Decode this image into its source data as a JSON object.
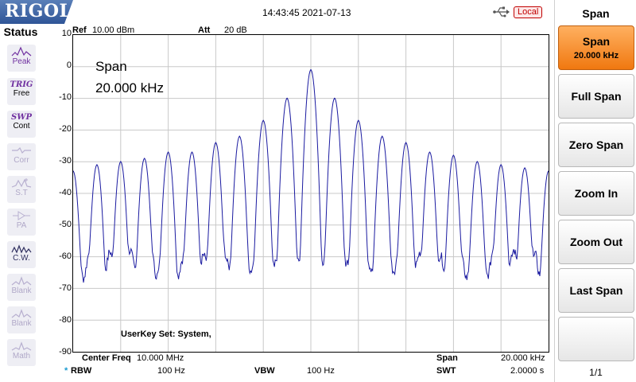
{
  "header": {
    "brand": "RIGOL",
    "datetime": "14:43:45 2021-07-13",
    "usb_icon": "usb-icon",
    "remote_mode": "Local"
  },
  "status": {
    "title": "Status",
    "items": [
      {
        "top": "",
        "label": "Peak",
        "icon": "peak-icon",
        "state": "active"
      },
      {
        "top": "TRIG",
        "label": "Free",
        "icon": "",
        "state": "active"
      },
      {
        "top": "SWP",
        "label": "Cont",
        "icon": "",
        "state": "active"
      },
      {
        "top": "",
        "label": "Corr",
        "icon": "corr-icon",
        "state": "dim"
      },
      {
        "top": "",
        "label": "S.T",
        "icon": "st-icon",
        "state": "dim"
      },
      {
        "top": "",
        "label": "PA",
        "icon": "pa-icon",
        "state": "dim"
      },
      {
        "top": "",
        "label": "C.W.",
        "icon": "cw-icon",
        "state": "active"
      },
      {
        "top": "",
        "label": "Blank",
        "icon": "blank-icon",
        "state": "dim"
      },
      {
        "top": "",
        "label": "Blank",
        "icon": "blank-icon",
        "state": "dim"
      },
      {
        "top": "",
        "label": "Math",
        "icon": "math-icon",
        "state": "dim"
      }
    ]
  },
  "screen": {
    "ref_label": "Ref",
    "ref_value": "10.00 dBm",
    "att_label": "Att",
    "att_value": "20 dB",
    "overlay_param": "Span",
    "overlay_value": "20.000 kHz",
    "userkey": "UserKey Set:    System,",
    "center_label": "Center Freq",
    "center_value": "10.000 MHz",
    "span_label": "Span",
    "span_value": "20.000 kHz",
    "rbw_marker": "*",
    "rbw_label": "RBW",
    "rbw_value": "100 Hz",
    "vbw_label": "VBW",
    "vbw_value": "100 Hz",
    "swt_label": "SWT",
    "swt_value": "2.0000 s"
  },
  "chart_data": {
    "type": "line",
    "xlim": [
      9.99,
      10.01
    ],
    "ylim": [
      -90,
      10
    ],
    "yticks": [
      "10",
      "0",
      "-10",
      "-20",
      "-30",
      "-40",
      "-50",
      "-60",
      "-70",
      "-80",
      "-90"
    ],
    "grid": true,
    "trace_color": "#1a1aa0",
    "series": [
      {
        "peaks": [
          {
            "x": 9.99,
            "y": -33
          },
          {
            "x": 9.991,
            "y": -31
          },
          {
            "x": 9.992,
            "y": -30
          },
          {
            "x": 9.993,
            "y": -29
          },
          {
            "x": 9.994,
            "y": -27
          },
          {
            "x": 9.995,
            "y": -27
          },
          {
            "x": 9.996,
            "y": -24
          },
          {
            "x": 9.997,
            "y": -22
          },
          {
            "x": 9.998,
            "y": -17
          },
          {
            "x": 9.999,
            "y": -10
          },
          {
            "x": 10.0,
            "y": -1
          },
          {
            "x": 10.001,
            "y": -10
          },
          {
            "x": 10.002,
            "y": -17
          },
          {
            "x": 10.003,
            "y": -22
          },
          {
            "x": 10.004,
            "y": -24
          },
          {
            "x": 10.005,
            "y": -27
          },
          {
            "x": 10.006,
            "y": -28
          },
          {
            "x": 10.007,
            "y": -30
          },
          {
            "x": 10.008,
            "y": -31
          },
          {
            "x": 10.009,
            "y": -32
          },
          {
            "x": 10.01,
            "y": -33
          }
        ],
        "floor_min": -67,
        "floor_max": -58
      }
    ]
  },
  "softkeys": {
    "title": "Span",
    "buttons": [
      {
        "label": "Span",
        "sub": "20.000 kHz",
        "selected": true
      },
      {
        "label": "Full Span",
        "sub": ""
      },
      {
        "label": "Zero Span",
        "sub": ""
      },
      {
        "label": "Zoom In",
        "sub": ""
      },
      {
        "label": "Zoom Out",
        "sub": ""
      },
      {
        "label": "Last Span",
        "sub": ""
      },
      {
        "label": "",
        "sub": ""
      }
    ],
    "page": "1/1"
  }
}
